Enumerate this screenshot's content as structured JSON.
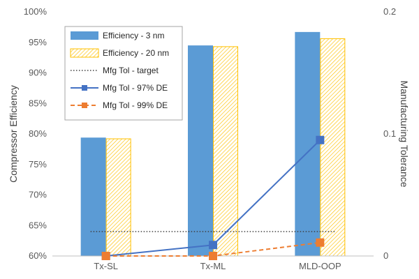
{
  "chart_data": {
    "type": "bar",
    "categories": [
      "Tx-SL",
      "Tx-ML",
      "MLD-OOP"
    ],
    "series": [
      {
        "name": "Efficiency - 3 nm",
        "axis": "left",
        "kind": "bar",
        "values": [
          79.4,
          94.5,
          96.7
        ],
        "color": "#5B9BD5"
      },
      {
        "name": "Efficiency - 20 nm",
        "axis": "left",
        "kind": "bar-hatched",
        "values": [
          79.2,
          94.3,
          95.6
        ],
        "color": "#FFC000"
      },
      {
        "name": "Mfg Tol - target",
        "axis": "right",
        "kind": "line-dotted",
        "values": [
          0.02,
          0.02,
          0.02
        ],
        "color": "#404040"
      },
      {
        "name": "Mfg Tol - 97% DE",
        "axis": "right",
        "kind": "line-marker",
        "values": [
          0.0,
          0.009,
          0.095
        ],
        "color": "#4472C4"
      },
      {
        "name": "Mfg Tol - 99% DE",
        "axis": "right",
        "kind": "line-dashed-marker",
        "values": [
          0.0,
          0.0,
          0.011
        ],
        "color": "#ED7D31"
      }
    ],
    "ylabel": "Compressor Efficiency",
    "y2label": "Manufacturing Tolerance",
    "ylim": [
      60,
      100
    ],
    "y2lim": [
      0,
      0.2
    ],
    "yticks": [
      "60%",
      "65%",
      "70%",
      "75%",
      "80%",
      "85%",
      "90%",
      "95%",
      "100%"
    ],
    "y2ticks": [
      "0",
      "0.1",
      "0.2"
    ],
    "grid": false,
    "legend_position": "top-left"
  }
}
